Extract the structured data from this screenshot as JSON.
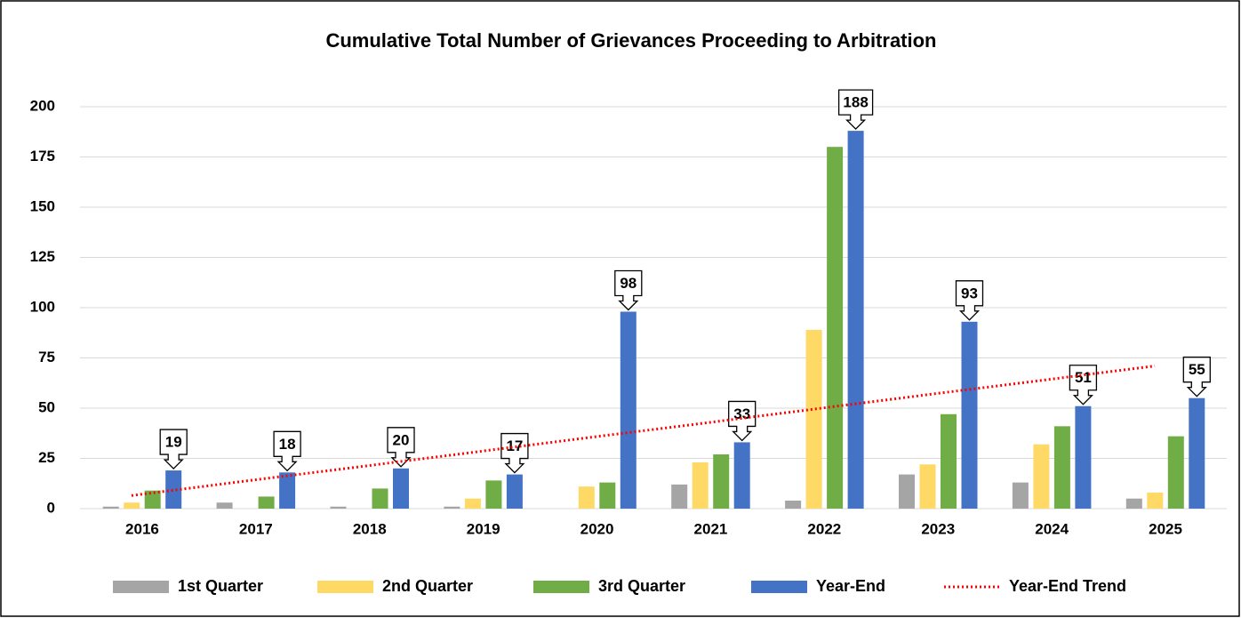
{
  "chart_data": {
    "type": "bar",
    "title": "Cumulative Total Number of Grievances Proceeding to Arbitration",
    "categories": [
      "2016",
      "2017",
      "2018",
      "2019",
      "2020",
      "2021",
      "2022",
      "2023",
      "2024",
      "2025"
    ],
    "series": [
      {
        "name": "1st Quarter",
        "color": "#a5a5a5",
        "values": [
          1,
          3,
          1,
          1,
          0,
          12,
          4,
          17,
          13,
          5
        ]
      },
      {
        "name": "2nd Quarter",
        "color": "#ffd966",
        "values": [
          3,
          0,
          0,
          5,
          11,
          23,
          89,
          22,
          32,
          8
        ]
      },
      {
        "name": "3rd Quarter",
        "color": "#70ad47",
        "values": [
          9,
          6,
          10,
          14,
          13,
          27,
          180,
          47,
          41,
          36
        ]
      },
      {
        "name": "Year-End",
        "color": "#4472c4",
        "values": [
          19,
          18,
          20,
          17,
          98,
          33,
          188,
          93,
          51,
          55
        ],
        "data_labels": true
      },
      {
        "name": "Year-End Trend",
        "color": "#ff0000",
        "type": "trend",
        "values": [
          6.5,
          13.7,
          20.8,
          28,
          35.2,
          42.3,
          49.5,
          56.7,
          63.8,
          71
        ]
      }
    ],
    "ylim": [
      0,
      200
    ],
    "yticks": [
      0,
      25,
      50,
      75,
      100,
      125,
      150,
      175,
      200
    ],
    "grid": true,
    "legend": "bottom"
  }
}
